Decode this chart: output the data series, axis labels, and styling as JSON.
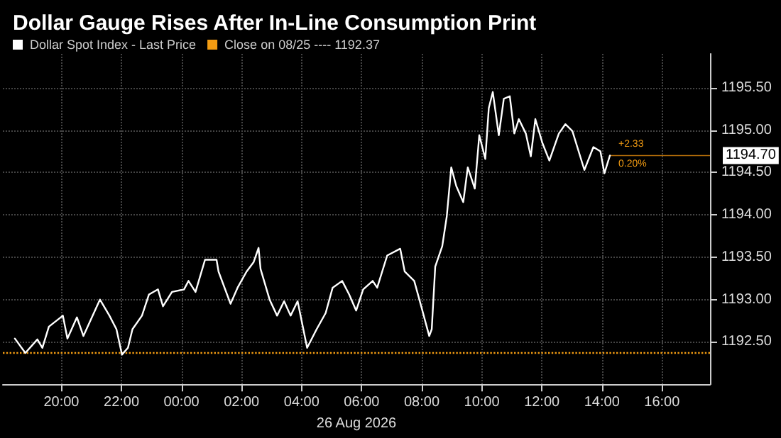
{
  "chart_data": {
    "type": "line",
    "title": "Dollar Gauge Rises After In-Line Consumption Print",
    "xlabel": "26 Aug 2026",
    "x": [
      "2026-08-25T18:27",
      "2026-08-25T18:48",
      "2026-08-25T19:12",
      "2026-08-25T19:22",
      "2026-08-25T19:35",
      "2026-08-25T20:03",
      "2026-08-25T20:12",
      "2026-08-25T20:31",
      "2026-08-25T20:44",
      "2026-08-25T21:17",
      "2026-08-25T21:36",
      "2026-08-25T21:50",
      "2026-08-25T22:01",
      "2026-08-25T22:13",
      "2026-08-25T22:22",
      "2026-08-25T22:41",
      "2026-08-25T22:55",
      "2026-08-25T23:13",
      "2026-08-25T23:23",
      "2026-08-25T23:41",
      "2026-08-26T00:05",
      "2026-08-26T00:14",
      "2026-08-26T00:28",
      "2026-08-26T00:47",
      "2026-08-26T01:10",
      "2026-08-26T01:14",
      "2026-08-26T01:38",
      "2026-08-26T01:52",
      "2026-08-26T02:10",
      "2026-08-26T02:24",
      "2026-08-26T02:34",
      "2026-08-26T02:38",
      "2026-08-26T02:56",
      "2026-08-26T03:11",
      "2026-08-26T03:25",
      "2026-08-26T03:38",
      "2026-08-26T03:52",
      "2026-08-26T04:11",
      "2026-08-26T04:30",
      "2026-08-26T04:48",
      "2026-08-26T05:02",
      "2026-08-26T05:21",
      "2026-08-26T05:35",
      "2026-08-26T05:49",
      "2026-08-26T06:03",
      "2026-08-26T06:22",
      "2026-08-26T06:31",
      "2026-08-26T06:51",
      "2026-08-26T07:17",
      "2026-08-26T07:26",
      "2026-08-26T07:45",
      "2026-08-26T07:59",
      "2026-08-26T08:15",
      "2026-08-26T08:20",
      "2026-08-26T08:27",
      "2026-08-26T08:41",
      "2026-08-26T08:50",
      "2026-08-26T08:59",
      "2026-08-26T09:09",
      "2026-08-26T09:23",
      "2026-08-26T09:32",
      "2026-08-26T09:46",
      "2026-08-26T09:55",
      "2026-08-26T10:07",
      "2026-08-26T10:14",
      "2026-08-26T10:22",
      "2026-08-26T10:34",
      "2026-08-26T10:44",
      "2026-08-26T10:56",
      "2026-08-26T11:05",
      "2026-08-26T11:14",
      "2026-08-26T11:28",
      "2026-08-26T11:38",
      "2026-08-26T11:47",
      "2026-08-26T12:01",
      "2026-08-26T12:15",
      "2026-08-26T12:34",
      "2026-08-26T12:47",
      "2026-08-26T13:01",
      "2026-08-26T13:25",
      "2026-08-26T13:43",
      "2026-08-26T13:57",
      "2026-08-26T14:05",
      "2026-08-26T14:16"
    ],
    "series": [
      {
        "name": "Dollar Spot Index - Last Price",
        "color": "#ffffff",
        "values": [
          1192.54,
          1192.37,
          1192.53,
          1192.43,
          1192.68,
          1192.81,
          1192.54,
          1192.79,
          1192.57,
          1193.0,
          1192.81,
          1192.65,
          1192.35,
          1192.43,
          1192.65,
          1192.81,
          1193.06,
          1193.12,
          1192.92,
          1193.09,
          1193.12,
          1193.22,
          1193.09,
          1193.47,
          1193.47,
          1193.33,
          1192.95,
          1193.14,
          1193.33,
          1193.44,
          1193.61,
          1193.36,
          1193.0,
          1192.81,
          1192.98,
          1192.81,
          1192.98,
          1192.43,
          1192.65,
          1192.84,
          1193.14,
          1193.22,
          1193.06,
          1192.87,
          1193.12,
          1193.22,
          1193.14,
          1193.52,
          1193.6,
          1193.33,
          1193.22,
          1192.92,
          1192.57,
          1192.65,
          1193.39,
          1193.63,
          1193.98,
          1194.56,
          1194.34,
          1194.15,
          1194.56,
          1194.31,
          1194.94,
          1194.66,
          1195.26,
          1195.45,
          1194.94,
          1195.37,
          1195.4,
          1194.96,
          1195.13,
          1194.96,
          1194.69,
          1195.13,
          1194.85,
          1194.64,
          1194.96,
          1195.07,
          1194.99,
          1194.53,
          1194.8,
          1194.75,
          1194.49,
          1194.7
        ]
      }
    ],
    "ref_lines": [
      {
        "axis": "y",
        "value": 1192.37,
        "label": "Close on 08/25 ---- 1192.37",
        "color": "#f39c12",
        "line_style": "dotted"
      },
      {
        "axis": "y",
        "value": 1194.7,
        "label": "1194.70",
        "color": "#b8700a",
        "line_style": "solid"
      }
    ],
    "annotations": [
      "+2.33",
      "0.20%"
    ],
    "xlim": [
      "2026-08-25T18:03",
      "2026-08-26T17:36"
    ],
    "xticks": [
      {
        "value": "2026-08-25T20:00",
        "label": "20:00"
      },
      {
        "value": "2026-08-25T22:00",
        "label": "22:00"
      },
      {
        "value": "2026-08-26T00:00",
        "label": "00:00"
      },
      {
        "value": "2026-08-26T02:00",
        "label": "02:00"
      },
      {
        "value": "2026-08-26T04:00",
        "label": "04:00"
      },
      {
        "value": "2026-08-26T06:00",
        "label": "06:00"
      },
      {
        "value": "2026-08-26T08:00",
        "label": "08:00"
      },
      {
        "value": "2026-08-26T10:00",
        "label": "10:00"
      },
      {
        "value": "2026-08-26T12:00",
        "label": "12:00"
      },
      {
        "value": "2026-08-26T14:00",
        "label": "14:00"
      },
      {
        "value": "2026-08-26T16:00",
        "label": "16:00"
      }
    ],
    "ylim": [
      1192.0,
      1195.9
    ],
    "yticks": [
      {
        "value": 1192.5,
        "label": "1192.50"
      },
      {
        "value": 1193,
        "label": "1193.00"
      },
      {
        "value": 1193.5,
        "label": "1193.50"
      },
      {
        "value": 1194,
        "label": "1194.00"
      },
      {
        "value": 1194.5,
        "label": "1194.50"
      },
      {
        "value": 1195,
        "label": "1195.00"
      },
      {
        "value": 1195.5,
        "label": "1195.50"
      }
    ],
    "grid": true,
    "legend": "top left",
    "marker": "none",
    "line_style": "solid"
  }
}
